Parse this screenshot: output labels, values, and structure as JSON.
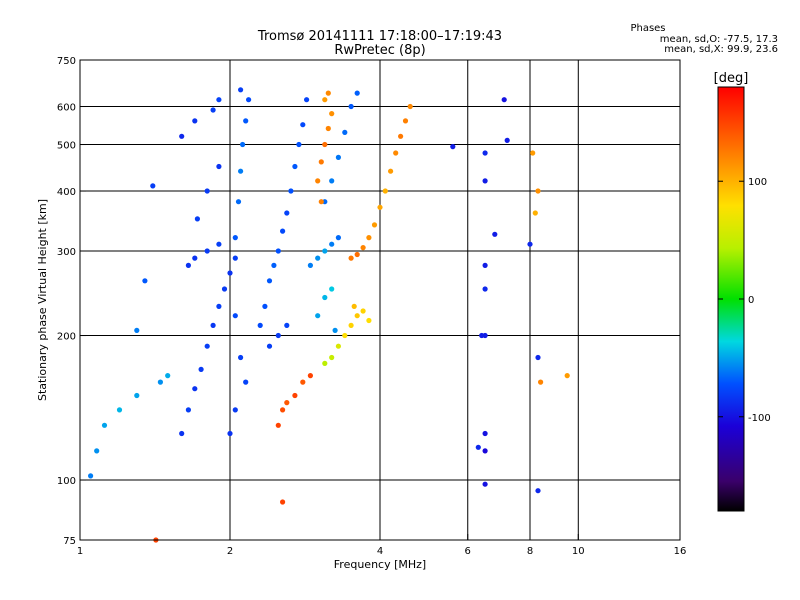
{
  "chart_data": {
    "type": "scatter",
    "title": "Tromsø 20141111 17:18:00–17:19:43",
    "subtitle": "RwPretec (8p)",
    "xlabel": "Frequency [MHz]",
    "ylabel": "Stationary phase Virtual Height [km]",
    "xscale": "log2",
    "yscale": "log",
    "xlim": [
      1,
      16
    ],
    "ylim": [
      75,
      750
    ],
    "xticks": [
      1,
      2,
      4,
      6,
      8,
      10,
      16
    ],
    "yticks": [
      75,
      100,
      200,
      300,
      400,
      500,
      600,
      750
    ],
    "x_gridlines": [
      2,
      4,
      6,
      8,
      10
    ],
    "y_gridlines": [
      100,
      200,
      300,
      400,
      500,
      600
    ],
    "grid": true,
    "stats": {
      "title": "Phases",
      "line_o": "mean, sd,O: -77.5, 17.3",
      "line_x": "mean, sd,X:  99.9, 23.6"
    },
    "colorbar": {
      "label": "[deg]",
      "range": [
        -180,
        180
      ],
      "ticks": [
        100,
        0,
        -100
      ],
      "tick_labels": [
        "100",
        "0",
        "-100"
      ],
      "colormap": "rainbow (black → purple → blue → cyan → green → yellow → orange → red)"
    },
    "series": [
      {
        "values": [
          [
            1.05,
            102,
            -60
          ],
          [
            1.08,
            115,
            -55
          ],
          [
            1.12,
            130,
            -50
          ],
          [
            1.2,
            140,
            -45
          ],
          [
            1.3,
            150,
            -50
          ],
          [
            1.45,
            160,
            -55
          ],
          [
            1.5,
            165,
            -48
          ],
          [
            1.3,
            205,
            -60
          ],
          [
            1.35,
            260,
            -70
          ],
          [
            1.4,
            410,
            -80
          ],
          [
            1.42,
            75,
            150
          ]
        ]
      },
      {
        "values": [
          [
            1.6,
            125,
            -85
          ],
          [
            1.65,
            140,
            -80
          ],
          [
            1.7,
            155,
            -85
          ],
          [
            1.75,
            170,
            -82
          ],
          [
            1.8,
            190,
            -80
          ],
          [
            1.85,
            210,
            -83
          ],
          [
            1.9,
            230,
            -80
          ],
          [
            1.95,
            250,
            -82
          ],
          [
            2.0,
            270,
            -85
          ],
          [
            2.05,
            290,
            -80
          ],
          [
            1.6,
            520,
            -90
          ],
          [
            1.7,
            560,
            -85
          ],
          [
            1.85,
            590,
            -80
          ],
          [
            1.9,
            620,
            -78
          ],
          [
            1.7,
            290,
            -85
          ],
          [
            1.8,
            300,
            -82
          ],
          [
            1.9,
            310,
            -80
          ],
          [
            1.65,
            280,
            -85
          ],
          [
            1.72,
            350,
            -80
          ],
          [
            1.8,
            400,
            -82
          ],
          [
            1.9,
            450,
            -85
          ]
        ]
      },
      {
        "values": [
          [
            2.05,
            320,
            -70
          ],
          [
            2.08,
            380,
            -65
          ],
          [
            2.1,
            440,
            -60
          ],
          [
            2.12,
            500,
            -65
          ],
          [
            2.15,
            560,
            -70
          ],
          [
            2.18,
            620,
            -75
          ],
          [
            2.1,
            650,
            -80
          ],
          [
            2.05,
            220,
            -75
          ],
          [
            2.1,
            180,
            -80
          ],
          [
            2.15,
            160,
            -78
          ],
          [
            2.05,
            140,
            -82
          ],
          [
            2.0,
            125,
            -85
          ]
        ]
      },
      {
        "values": [
          [
            2.3,
            210,
            -75
          ],
          [
            2.35,
            230,
            -72
          ],
          [
            2.4,
            260,
            -70
          ],
          [
            2.45,
            280,
            -68
          ],
          [
            2.5,
            300,
            -72
          ],
          [
            2.55,
            330,
            -75
          ],
          [
            2.6,
            360,
            -78
          ],
          [
            2.65,
            400,
            -72
          ],
          [
            2.7,
            450,
            -70
          ],
          [
            2.75,
            500,
            -72
          ],
          [
            2.8,
            550,
            -75
          ],
          [
            2.85,
            620,
            -78
          ],
          [
            2.4,
            190,
            -80
          ],
          [
            2.5,
            200,
            -82
          ],
          [
            2.6,
            210,
            -78
          ]
        ]
      },
      {
        "values": [
          [
            2.9,
            280,
            -60
          ],
          [
            3.0,
            290,
            -55
          ],
          [
            3.1,
            300,
            -50
          ],
          [
            3.2,
            310,
            -60
          ],
          [
            3.3,
            320,
            -65
          ],
          [
            3.1,
            380,
            -65
          ],
          [
            3.2,
            420,
            -60
          ],
          [
            3.3,
            470,
            -62
          ],
          [
            3.4,
            530,
            -65
          ],
          [
            3.5,
            600,
            -70
          ],
          [
            3.6,
            640,
            -68
          ],
          [
            3.0,
            220,
            -50
          ],
          [
            3.1,
            240,
            -45
          ],
          [
            3.2,
            250,
            -40
          ],
          [
            3.25,
            205,
            -55
          ]
        ]
      },
      {
        "values": [
          [
            3.0,
            420,
            120
          ],
          [
            3.05,
            460,
            125
          ],
          [
            3.1,
            500,
            130
          ],
          [
            3.15,
            540,
            120
          ],
          [
            3.2,
            580,
            115
          ],
          [
            3.1,
            620,
            110
          ],
          [
            3.15,
            640,
            118
          ],
          [
            3.05,
            380,
            122
          ]
        ]
      },
      {
        "values": [
          [
            3.5,
            290,
            125
          ],
          [
            3.6,
            295,
            130
          ],
          [
            3.7,
            305,
            120
          ],
          [
            3.8,
            320,
            115
          ],
          [
            3.9,
            340,
            110
          ],
          [
            4.0,
            370,
            105
          ],
          [
            4.1,
            400,
            100
          ],
          [
            4.2,
            440,
            110
          ],
          [
            4.3,
            480,
            118
          ],
          [
            4.4,
            520,
            125
          ],
          [
            4.5,
            560,
            122
          ],
          [
            4.6,
            600,
            118
          ]
        ]
      },
      {
        "values": [
          [
            3.4,
            200,
            80
          ],
          [
            3.5,
            210,
            85
          ],
          [
            3.6,
            220,
            90
          ],
          [
            3.7,
            225,
            85
          ],
          [
            3.8,
            215,
            80
          ],
          [
            3.55,
            230,
            95
          ],
          [
            3.3,
            190,
            60
          ],
          [
            3.2,
            180,
            50
          ],
          [
            3.1,
            175,
            45
          ]
        ]
      },
      {
        "values": [
          [
            2.5,
            130,
            150
          ],
          [
            2.55,
            140,
            145
          ],
          [
            2.6,
            145,
            140
          ],
          [
            2.7,
            150,
            150
          ],
          [
            2.55,
            90,
            150
          ],
          [
            2.8,
            160,
            140
          ],
          [
            2.9,
            165,
            150
          ]
        ]
      },
      {
        "values": [
          [
            6.5,
            480,
            -90
          ],
          [
            6.5,
            420,
            -95
          ],
          [
            6.5,
            280,
            -95
          ],
          [
            6.5,
            250,
            -90
          ],
          [
            6.5,
            200,
            -95
          ],
          [
            6.5,
            125,
            -100
          ],
          [
            6.5,
            115,
            -105
          ],
          [
            6.5,
            98,
            -100
          ],
          [
            6.3,
            117,
            -90
          ],
          [
            6.4,
            200,
            -95
          ],
          [
            6.8,
            325,
            -95
          ],
          [
            7.1,
            620,
            -100
          ],
          [
            7.2,
            510,
            -95
          ],
          [
            8.1,
            480,
            110
          ],
          [
            8.3,
            400,
            115
          ],
          [
            8.2,
            360,
            100
          ],
          [
            8.0,
            310,
            -90
          ],
          [
            8.3,
            180,
            -90
          ],
          [
            8.4,
            160,
            120
          ],
          [
            8.3,
            95,
            -90
          ],
          [
            5.6,
            495,
            -95
          ],
          [
            9.5,
            165,
            110
          ]
        ]
      }
    ]
  }
}
